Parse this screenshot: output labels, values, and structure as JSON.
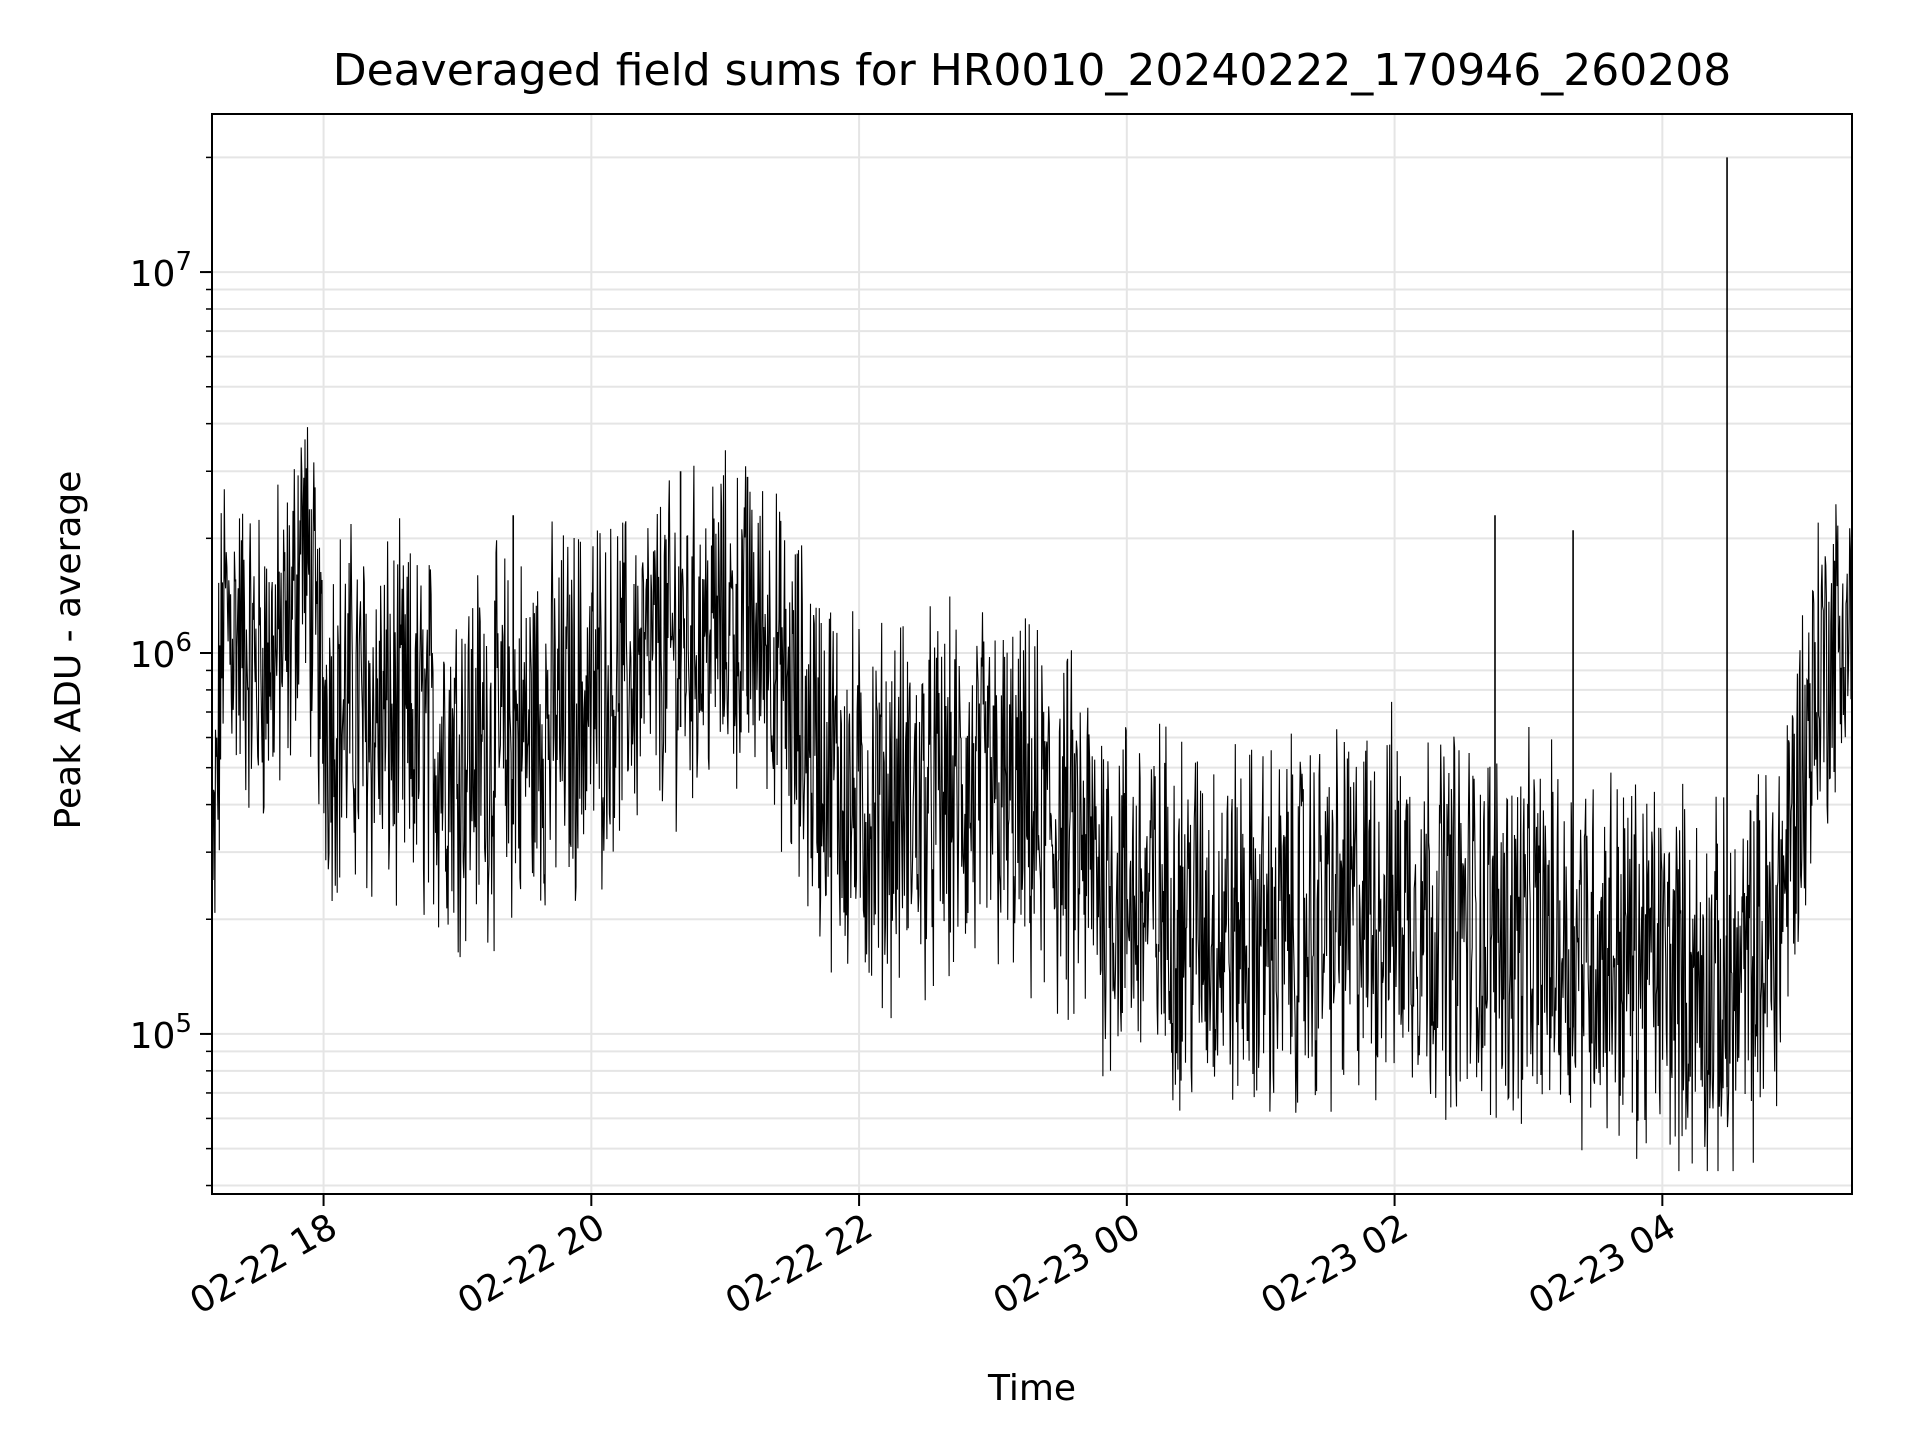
{
  "chart_data": {
    "type": "line",
    "title": "Deaveraged field sums for HR0010_20240222_170946_260208",
    "xlabel": "Time",
    "ylabel": "Peak ADU - average",
    "yscale": "log",
    "grid": true,
    "line_color": "#000000",
    "grid_color": "#e5e5e5",
    "xlim": [
      "2024-02-22 17:10",
      "2024-02-23 05:25"
    ],
    "ylim": [
      38000,
      26000000
    ],
    "x_ticks": [
      {
        "value": "2024-02-22 18:00",
        "label": "02-22 18"
      },
      {
        "value": "2024-02-22 20:00",
        "label": "02-22 20"
      },
      {
        "value": "2024-02-22 22:00",
        "label": "02-22 22"
      },
      {
        "value": "2024-02-23 00:00",
        "label": "02-23 00"
      },
      {
        "value": "2024-02-23 02:00",
        "label": "02-23 02"
      },
      {
        "value": "2024-02-23 04:00",
        "label": "02-23 04"
      }
    ],
    "y_ticks": [
      {
        "value": 100000,
        "base": "10",
        "exp": "5"
      },
      {
        "value": 1000000,
        "base": "10",
        "exp": "6"
      },
      {
        "value": 10000000,
        "base": "10",
        "exp": "7"
      }
    ],
    "series": [
      {
        "points": [
          [
            "2024-02-22 17:10",
            180000
          ],
          [
            "2024-02-22 17:15",
            1300000
          ],
          [
            "2024-02-22 17:30",
            900000
          ],
          [
            "2024-02-22 17:45",
            1100000
          ],
          [
            "2024-02-22 17:50",
            2200000
          ],
          [
            "2024-02-22 18:00",
            750000
          ],
          [
            "2024-02-22 18:30",
            650000
          ],
          [
            "2024-02-22 19:00",
            550000
          ],
          [
            "2024-02-22 19:30",
            600000
          ],
          [
            "2024-02-22 20:00",
            750000
          ],
          [
            "2024-02-22 20:30",
            1000000
          ],
          [
            "2024-02-22 20:45",
            1100000
          ],
          [
            "2024-02-22 21:00",
            1200000
          ],
          [
            "2024-02-22 21:20",
            1100000
          ],
          [
            "2024-02-22 21:30",
            700000
          ],
          [
            "2024-02-22 22:00",
            380000
          ],
          [
            "2024-02-22 22:30",
            400000
          ],
          [
            "2024-02-22 23:00",
            420000
          ],
          [
            "2024-02-22 23:30",
            330000
          ],
          [
            "2024-02-23 00:00",
            230000
          ],
          [
            "2024-02-23 00:30",
            200000
          ],
          [
            "2024-02-23 01:00",
            180000
          ],
          [
            "2024-02-23 01:30",
            200000
          ],
          [
            "2024-02-23 02:00",
            220000
          ],
          [
            "2024-02-23 02:30",
            200000
          ],
          [
            "2024-02-23 03:00",
            180000
          ],
          [
            "2024-02-23 03:30",
            170000
          ],
          [
            "2024-02-23 04:00",
            150000
          ],
          [
            "2024-02-23 04:30",
            120000
          ],
          [
            "2024-02-23 04:50",
            180000
          ],
          [
            "2024-02-23 05:00",
            400000
          ],
          [
            "2024-02-23 05:10",
            900000
          ],
          [
            "2024-02-23 05:25",
            1200000
          ]
        ],
        "spikes": [
          [
            "2024-02-23 04:29",
            20000000
          ],
          [
            "2024-02-22 20:40",
            3000000
          ],
          [
            "2024-02-22 21:10",
            2900000
          ],
          [
            "2024-02-23 02:45",
            2300000
          ],
          [
            "2024-02-23 03:20",
            2100000
          ],
          [
            "2024-02-22 19:25",
            2300000
          ]
        ]
      }
    ]
  }
}
